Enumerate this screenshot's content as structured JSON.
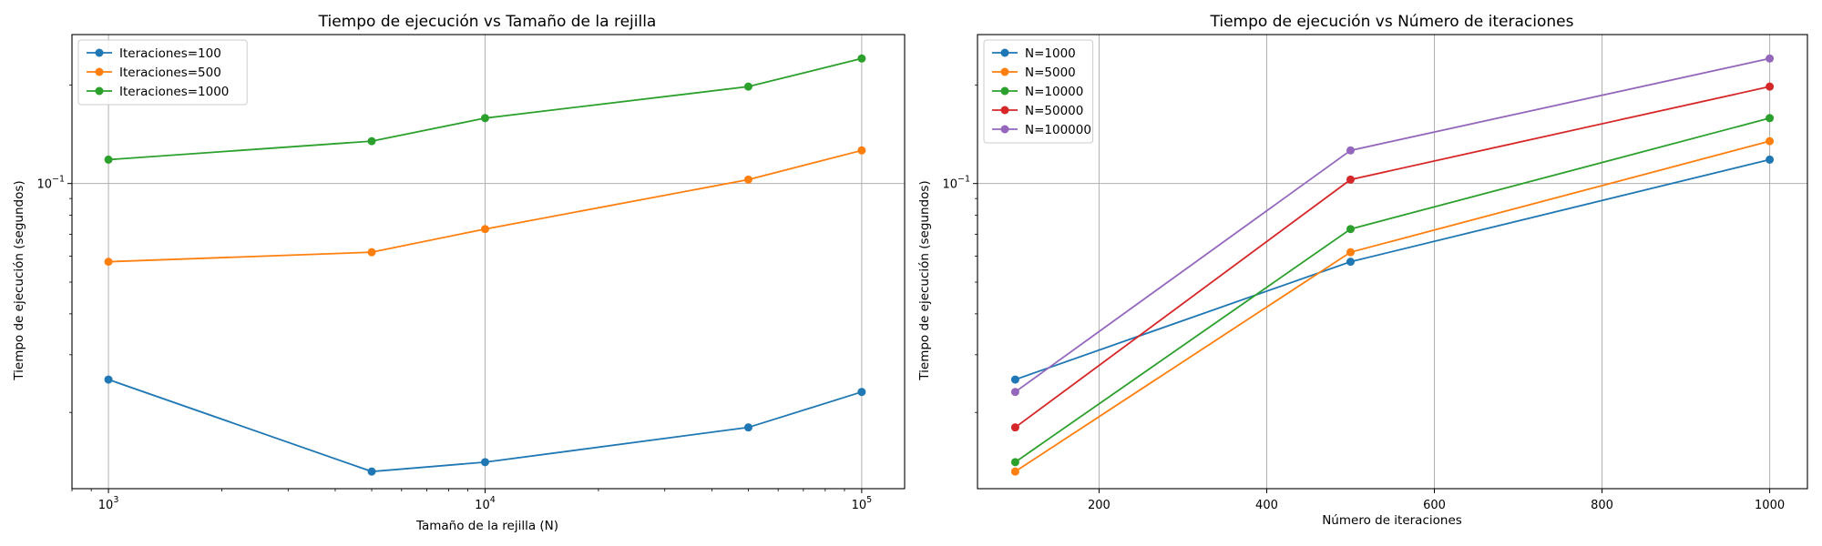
{
  "chart_data": [
    {
      "type": "line",
      "title": "Tiempo de ejecución vs Tamaño de la rejilla",
      "xlabel": "Tamaño de la rejilla (N)",
      "ylabel": "Tiempo de ejecución (segundos)",
      "xscale": "log",
      "yscale": "log",
      "xlim": [
        800,
        130000
      ],
      "ylim": [
        0.0117,
        0.285
      ],
      "x": [
        1000,
        5000,
        10000,
        50000,
        100000
      ],
      "x_tick_values": [
        1000,
        10000,
        100000
      ],
      "x_tick_labels": [
        {
          "base": "10",
          "exp": "3"
        },
        {
          "base": "10",
          "exp": "4"
        },
        {
          "base": "10",
          "exp": "5"
        }
      ],
      "y_tick_values": [
        0.1
      ],
      "y_tick_labels": [
        {
          "base": "10",
          "exp": "−1"
        }
      ],
      "grid": true,
      "legend_position": "top-left",
      "series": [
        {
          "name": "Iteraciones=100",
          "color": "#1f77b4",
          "values": [
            0.0252,
            0.0132,
            0.0141,
            0.018,
            0.0231
          ]
        },
        {
          "name": "Iteraciones=500",
          "color": "#ff7f0e",
          "values": [
            0.0577,
            0.0617,
            0.0726,
            0.1028,
            0.1262
          ]
        },
        {
          "name": "Iteraciones=1000",
          "color": "#2ca02c",
          "values": [
            0.1183,
            0.1347,
            0.1584,
            0.1977,
            0.2409
          ]
        }
      ]
    },
    {
      "type": "line",
      "title": "Tiempo de ejecución vs Número de iteraciones",
      "xlabel": "Número de iteraciones",
      "ylabel": "Tiempo de ejecución (segundos)",
      "xscale": "linear",
      "yscale": "log",
      "xlim": [
        55,
        1045
      ],
      "ylim": [
        0.0117,
        0.285
      ],
      "x": [
        100,
        500,
        1000
      ],
      "x_tick_values": [
        200,
        400,
        600,
        800,
        1000
      ],
      "x_tick_labels": [
        "200",
        "400",
        "600",
        "800",
        "1000"
      ],
      "y_tick_values": [
        0.1
      ],
      "y_tick_labels": [
        {
          "base": "10",
          "exp": "−1"
        }
      ],
      "grid": true,
      "legend_position": "top-left",
      "series": [
        {
          "name": "N=1000",
          "color": "#1f77b4",
          "values": [
            0.0252,
            0.0577,
            0.1183
          ]
        },
        {
          "name": "N=5000",
          "color": "#ff7f0e",
          "values": [
            0.0132,
            0.0617,
            0.1347
          ]
        },
        {
          "name": "N=10000",
          "color": "#2ca02c",
          "values": [
            0.0141,
            0.0726,
            0.1584
          ]
        },
        {
          "name": "N=50000",
          "color": "#d62728",
          "values": [
            0.018,
            0.1028,
            0.1977
          ]
        },
        {
          "name": "N=100000",
          "color": "#9467bd",
          "values": [
            0.0231,
            0.1262,
            0.2409
          ]
        }
      ]
    }
  ]
}
